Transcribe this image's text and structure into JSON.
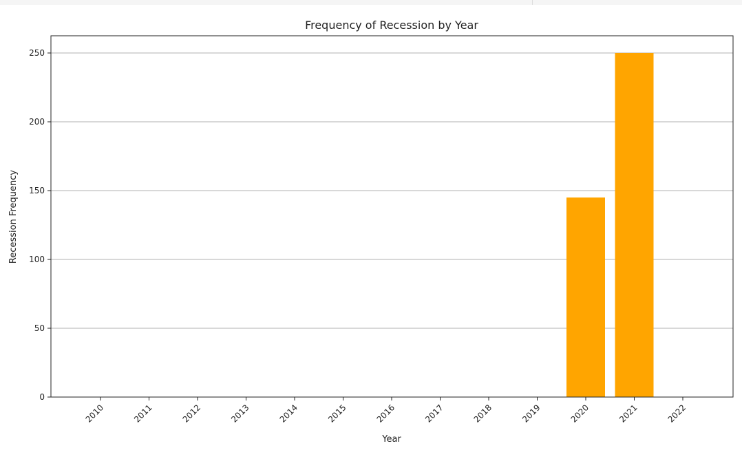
{
  "chart_data": {
    "type": "bar",
    "title": "Frequency of Recession by Year",
    "xlabel": "Year",
    "ylabel": "Recession Frequency",
    "categories": [
      "2010",
      "2011",
      "2012",
      "2013",
      "2014",
      "2015",
      "2016",
      "2017",
      "2018",
      "2019",
      "2020",
      "2021",
      "2022"
    ],
    "values": [
      0,
      0,
      0,
      0,
      0,
      0,
      0,
      0,
      0,
      0,
      145,
      250,
      0
    ],
    "ylim": [
      0,
      250
    ],
    "yticks": [
      0,
      50,
      100,
      150,
      200,
      250
    ],
    "grid": "y",
    "bar_color": "#FFA500"
  }
}
